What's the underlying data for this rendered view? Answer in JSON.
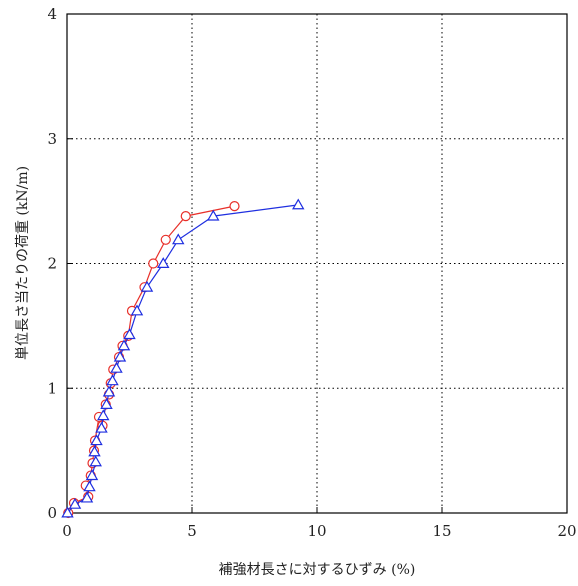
{
  "chart_data": {
    "type": "line",
    "xlabel": "補強材長さに対するひずみ (%)",
    "ylabel": "単位長さ当たりの荷重 (kN/m)",
    "xlim": [
      0,
      20
    ],
    "ylim": [
      0,
      4
    ],
    "x_ticks": [
      "0",
      "5",
      "10",
      "15",
      "20"
    ],
    "y_ticks": [
      "0",
      "1",
      "2",
      "3",
      "4"
    ],
    "grid": true,
    "legend": "none",
    "series": [
      {
        "color": "#e8302a",
        "marker": "circle",
        "points": [
          [
            0.05,
            0.0
          ],
          [
            0.28,
            0.08
          ],
          [
            0.85,
            0.13
          ],
          [
            0.75,
            0.22
          ],
          [
            0.95,
            0.3
          ],
          [
            1.02,
            0.4
          ],
          [
            1.08,
            0.5
          ],
          [
            1.12,
            0.58
          ],
          [
            1.28,
            0.77
          ],
          [
            1.42,
            0.7
          ],
          [
            1.55,
            0.87
          ],
          [
            1.68,
            0.95
          ],
          [
            1.75,
            1.04
          ],
          [
            1.85,
            1.15
          ],
          [
            2.08,
            1.25
          ],
          [
            2.22,
            1.34
          ],
          [
            2.45,
            1.42
          ],
          [
            2.6,
            1.62
          ],
          [
            3.1,
            1.81
          ],
          [
            3.45,
            2.0
          ],
          [
            3.95,
            2.19
          ],
          [
            4.75,
            2.38
          ],
          [
            6.7,
            2.46
          ]
        ]
      },
      {
        "color": "#1f2fe0",
        "marker": "triangle",
        "points": [
          [
            0.02,
            0.0
          ],
          [
            0.32,
            0.07
          ],
          [
            0.8,
            0.12
          ],
          [
            0.9,
            0.21
          ],
          [
            1.0,
            0.3
          ],
          [
            1.15,
            0.41
          ],
          [
            1.1,
            0.49
          ],
          [
            1.18,
            0.58
          ],
          [
            1.38,
            0.68
          ],
          [
            1.45,
            0.78
          ],
          [
            1.58,
            0.87
          ],
          [
            1.68,
            0.97
          ],
          [
            1.82,
            1.06
          ],
          [
            1.98,
            1.16
          ],
          [
            2.12,
            1.25
          ],
          [
            2.28,
            1.34
          ],
          [
            2.5,
            1.43
          ],
          [
            2.8,
            1.62
          ],
          [
            3.2,
            1.81
          ],
          [
            3.85,
            2.0
          ],
          [
            4.45,
            2.19
          ],
          [
            5.85,
            2.38
          ],
          [
            9.25,
            2.47
          ]
        ]
      }
    ]
  }
}
